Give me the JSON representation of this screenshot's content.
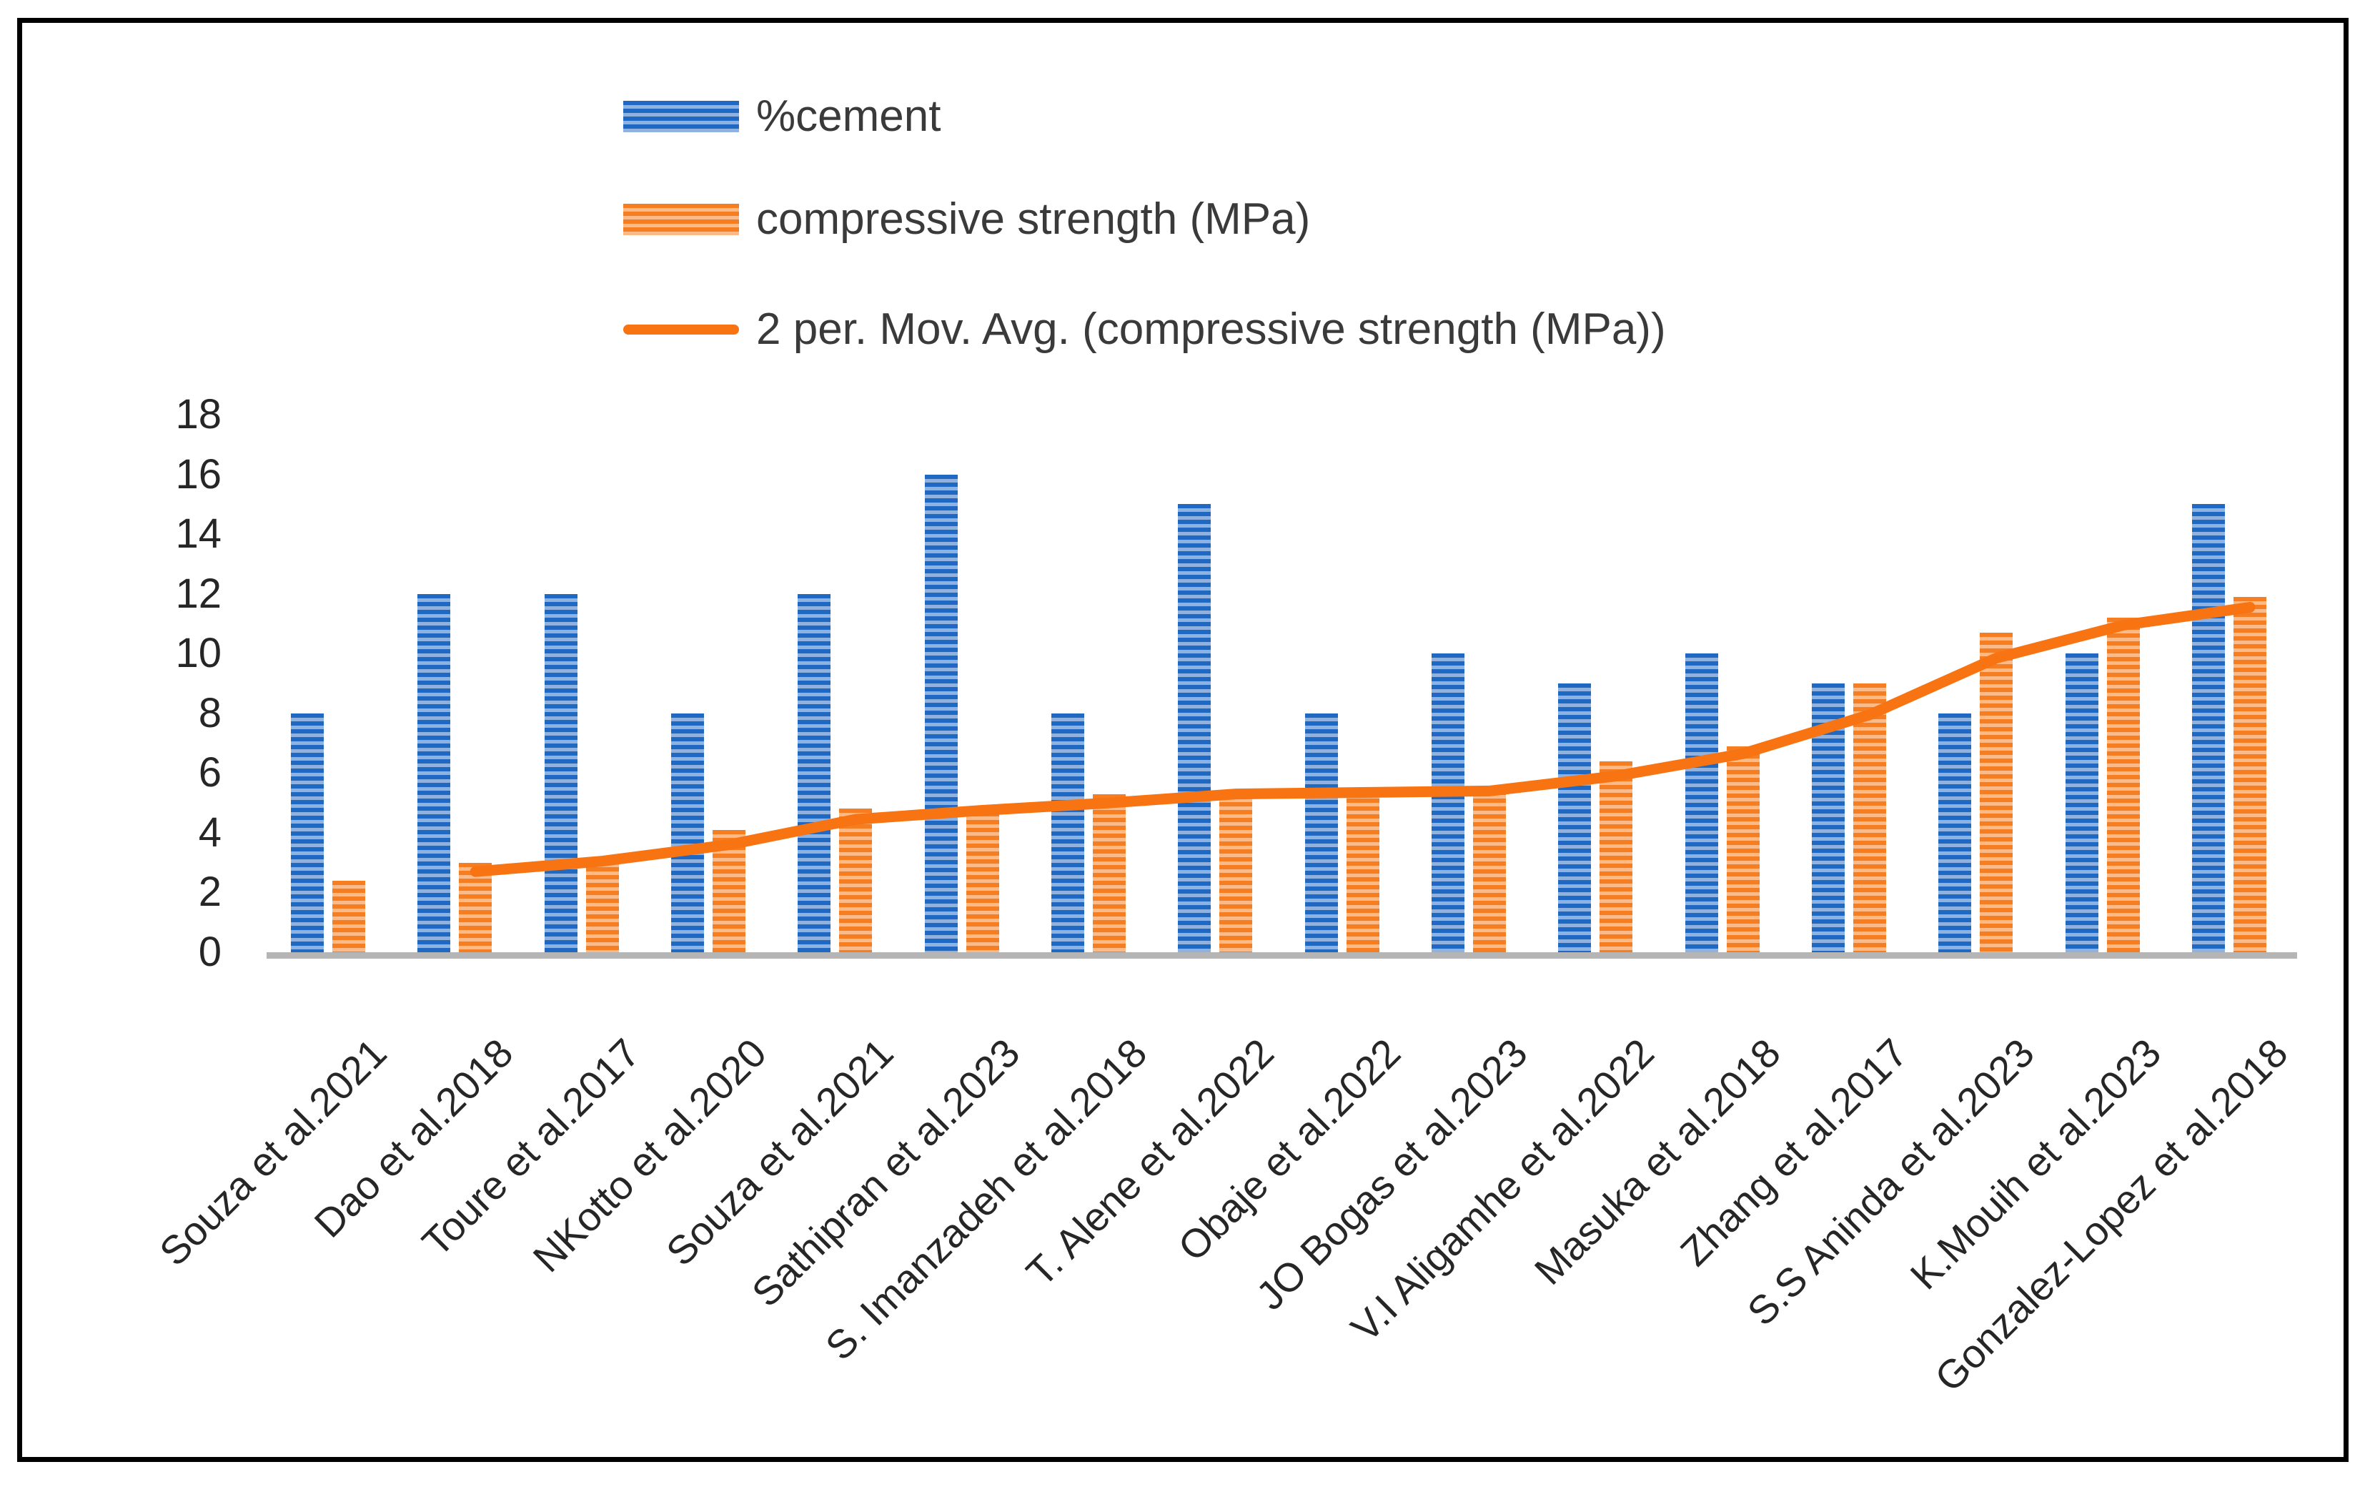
{
  "legend": {
    "cement_label": "%cement",
    "strength_label": "compressive strength (MPa)",
    "trendline_label": "2 per. Mov. Avg. (compressive strength (MPa))"
  },
  "colors": {
    "cement_bar": "#2069C3",
    "cement_bar_stripe": "#8FB2E1",
    "strength_bar": "#F57E22",
    "strength_bar_stripe": "#FBBA87",
    "trendline": "#F87311",
    "axis_line": "#B5B5B5",
    "tick_text": "#262626",
    "legend_text": "#3A3A3A",
    "frame_border": "#000000"
  },
  "chart_data": {
    "type": "bar",
    "title": "",
    "xlabel": "",
    "ylabel": "",
    "ylim": [
      0,
      18
    ],
    "ytick_step": 2,
    "yticks": [
      0,
      2,
      4,
      6,
      8,
      10,
      12,
      14,
      16,
      18
    ],
    "grid": false,
    "legend_position": "top-left-stacked",
    "categories": [
      "Souza et al.2021",
      "Dao et al.2018",
      "Toure et al.2017",
      "NKotto et al.2020",
      "Souza et al.2021",
      "Sathipran et al.2023",
      "S. Imanzadeh et al.2018",
      "T. Alene et al.2022",
      "Obaje et al.2022",
      "JO Bogas et al.2023",
      "V.I Aligamhe et al.2022",
      "Masuka et al.2018",
      "Zhang et al.2017",
      "S.S Aninda et al.2023",
      "K.Mouih et al.2023",
      "Gonzalez-Lopez et al.2018"
    ],
    "series": [
      {
        "name": "%cement",
        "values": [
          8,
          12,
          12,
          8,
          12,
          16,
          8,
          15,
          8,
          10,
          9,
          10,
          9,
          8,
          10,
          15
        ]
      },
      {
        "name": "compressive strength (MPa)",
        "values": [
          2.4,
          3.0,
          3.1,
          4.1,
          4.8,
          4.7,
          5.3,
          5.3,
          5.4,
          5.4,
          6.4,
          6.9,
          9.0,
          10.7,
          11.2,
          11.9
        ]
      }
    ],
    "trendline": {
      "name": "2 per. Mov. Avg. (compressive strength (MPa))",
      "period": 2,
      "values": [
        null,
        2.7,
        3.05,
        3.6,
        4.45,
        4.75,
        5.0,
        5.3,
        5.35,
        5.4,
        5.9,
        6.65,
        7.95,
        9.85,
        10.95,
        11.55
      ]
    }
  }
}
